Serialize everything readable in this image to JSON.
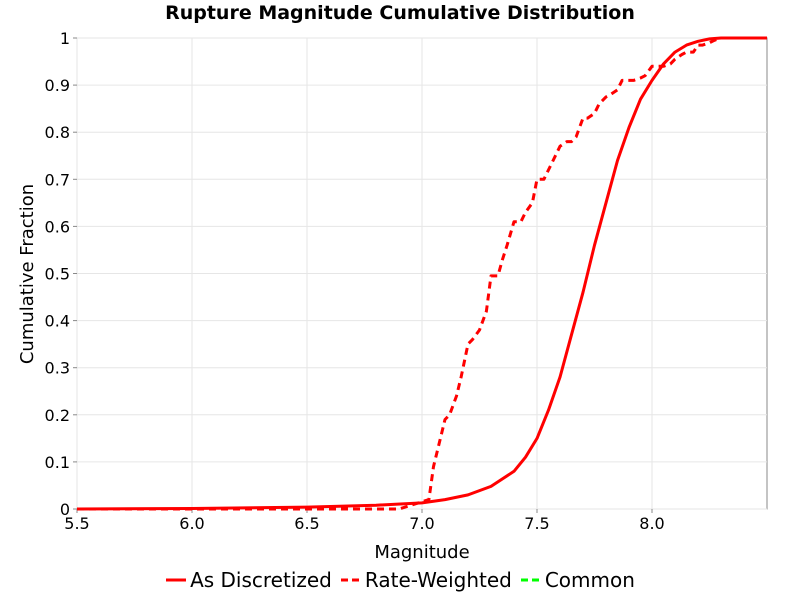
{
  "chart_data": {
    "type": "line",
    "title": "Rupture Magnitude Cumulative Distribution",
    "xlabel": "Magnitude",
    "ylabel": "Cumulative Fraction",
    "xlim": [
      5.5,
      8.5
    ],
    "ylim": [
      0,
      1
    ],
    "x_ticks": [
      "5.5",
      "6.0",
      "6.5",
      "7.0",
      "7.5",
      "8.0"
    ],
    "y_ticks": [
      "0",
      "0.1",
      "0.2",
      "0.3",
      "0.4",
      "0.5",
      "0.6",
      "0.7",
      "0.8",
      "0.9",
      "1"
    ],
    "grid": true,
    "legend_position": "bottom",
    "series": [
      {
        "name": "As Discretized",
        "color": "#ff0000",
        "style": "solid",
        "x": [
          5.5,
          6.0,
          6.5,
          6.8,
          7.0,
          7.1,
          7.2,
          7.3,
          7.4,
          7.45,
          7.5,
          7.55,
          7.6,
          7.65,
          7.7,
          7.75,
          7.8,
          7.85,
          7.9,
          7.95,
          8.0,
          8.05,
          8.1,
          8.15,
          8.2,
          8.25,
          8.3,
          8.4,
          8.5
        ],
        "y": [
          0.0,
          0.001,
          0.004,
          0.008,
          0.013,
          0.02,
          0.03,
          0.048,
          0.08,
          0.11,
          0.15,
          0.21,
          0.28,
          0.37,
          0.46,
          0.56,
          0.65,
          0.74,
          0.81,
          0.87,
          0.91,
          0.945,
          0.97,
          0.985,
          0.993,
          0.998,
          1.0,
          1.0,
          1.0
        ]
      },
      {
        "name": "Rate-Weighted",
        "color": "#ff0000",
        "style": "dashed",
        "x": [
          5.5,
          6.5,
          6.9,
          7.03,
          7.05,
          7.07,
          7.1,
          7.12,
          7.15,
          7.17,
          7.2,
          7.22,
          7.25,
          7.28,
          7.3,
          7.33,
          7.35,
          7.37,
          7.4,
          7.43,
          7.45,
          7.48,
          7.5,
          7.53,
          7.55,
          7.57,
          7.6,
          7.63,
          7.65,
          7.67,
          7.7,
          7.72,
          7.75,
          7.77,
          7.8,
          7.82,
          7.85,
          7.87,
          7.9,
          7.92,
          7.95,
          7.97,
          8.0,
          8.03,
          8.05,
          8.08,
          8.1,
          8.13,
          8.15,
          8.18,
          8.2,
          8.22,
          8.25,
          8.27,
          8.3,
          8.35,
          8.4,
          8.5
        ],
        "y": [
          0.0,
          0.0,
          0.0,
          0.02,
          0.09,
          0.13,
          0.19,
          0.2,
          0.24,
          0.28,
          0.35,
          0.36,
          0.38,
          0.42,
          0.495,
          0.495,
          0.53,
          0.56,
          0.61,
          0.61,
          0.63,
          0.65,
          0.7,
          0.7,
          0.72,
          0.74,
          0.77,
          0.78,
          0.78,
          0.79,
          0.83,
          0.83,
          0.84,
          0.86,
          0.875,
          0.88,
          0.89,
          0.91,
          0.91,
          0.91,
          0.915,
          0.92,
          0.94,
          0.94,
          0.94,
          0.945,
          0.955,
          0.965,
          0.97,
          0.97,
          0.985,
          0.985,
          0.99,
          0.995,
          1.0,
          1.0,
          1.0,
          1.0
        ]
      },
      {
        "name": "Common",
        "color": "#00ff00",
        "style": "dashed",
        "x": [],
        "y": []
      }
    ]
  }
}
